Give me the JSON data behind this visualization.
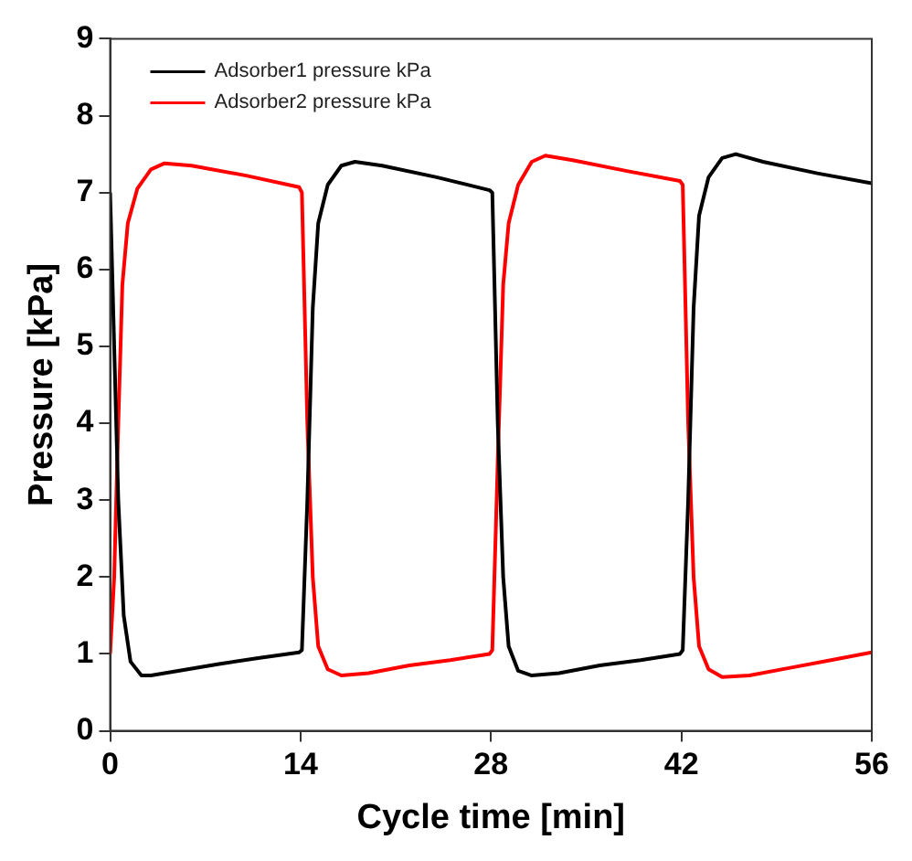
{
  "chart_data": {
    "type": "line",
    "xlabel": "Cycle time [min]",
    "ylabel": "Pressure [kPa]",
    "xlim": [
      0,
      56
    ],
    "xticks": [
      0,
      14,
      28,
      42,
      56
    ],
    "ylim": [
      0,
      9
    ],
    "yticks": [
      0,
      1,
      2,
      3,
      4,
      5,
      6,
      7,
      8,
      9
    ],
    "grid": false,
    "legend": "top left",
    "marker": "none",
    "line_style": "solid",
    "series": [
      {
        "name": "Adsorber1 pressure kPa",
        "color": "#000000",
        "x": [
          0,
          0.3,
          0.6,
          1.0,
          1.5,
          2.3,
          3,
          5,
          8,
          11,
          13.9,
          14.1,
          14.5,
          14.9,
          15.3,
          16,
          17,
          18,
          20,
          24,
          27.9,
          28.1,
          28.5,
          28.9,
          29.3,
          30,
          31,
          33,
          36,
          39,
          41.9,
          42.1,
          42.5,
          42.9,
          43.3,
          44,
          45,
          46,
          48,
          52,
          56
        ],
        "values": [
          7.0,
          5,
          3,
          1.5,
          0.9,
          0.72,
          0.72,
          0.78,
          0.87,
          0.95,
          1.02,
          1.05,
          3,
          5.5,
          6.6,
          7.1,
          7.35,
          7.4,
          7.35,
          7.2,
          7.03,
          7.0,
          4,
          2,
          1.1,
          0.78,
          0.72,
          0.75,
          0.85,
          0.92,
          1.0,
          1.05,
          3,
          5.5,
          6.7,
          7.2,
          7.45,
          7.5,
          7.4,
          7.25,
          7.12
        ]
      },
      {
        "name": "Adsorber2 pressure kPa",
        "color": "#ff0000",
        "x": [
          0,
          0.3,
          0.6,
          0.9,
          1.3,
          2,
          3,
          4,
          6,
          10,
          13.9,
          14.1,
          14.5,
          14.9,
          15.3,
          16,
          17,
          19,
          22,
          25,
          27.9,
          28.1,
          28.5,
          28.9,
          29.3,
          30,
          31,
          32,
          34,
          38,
          41.9,
          42.1,
          42.5,
          42.9,
          43.3,
          44,
          45,
          47,
          50,
          53,
          56
        ],
        "values": [
          1.0,
          2,
          4,
          5.8,
          6.6,
          7.05,
          7.3,
          7.38,
          7.35,
          7.22,
          7.07,
          7.0,
          4,
          2,
          1.1,
          0.8,
          0.72,
          0.75,
          0.85,
          0.92,
          1.0,
          1.05,
          3.5,
          5.8,
          6.6,
          7.1,
          7.4,
          7.48,
          7.42,
          7.28,
          7.15,
          7.1,
          4,
          2,
          1.1,
          0.8,
          0.7,
          0.72,
          0.82,
          0.92,
          1.02
        ]
      }
    ]
  }
}
